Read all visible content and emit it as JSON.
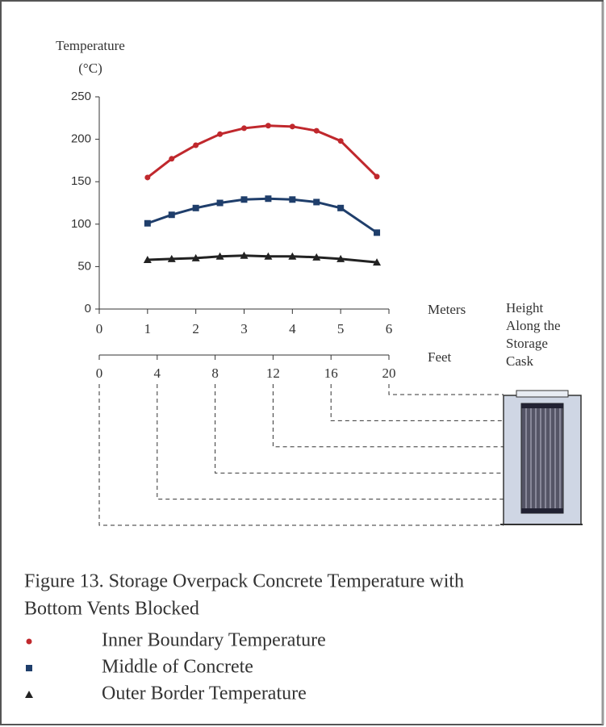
{
  "chart_data": {
    "type": "line",
    "y_label_lines": [
      "Temperature",
      "(°C)"
    ],
    "x_label": "Meters",
    "x2_label": "Feet",
    "cask_label": [
      "Height",
      "Along the",
      "Storage",
      "Cask"
    ],
    "x": [
      1,
      1.5,
      2,
      2.5,
      3,
      3.5,
      4,
      4.5,
      5,
      5.75
    ],
    "series": [
      {
        "name": "Inner Boundary Temperature",
        "color": "#c0282d",
        "marker": "circle",
        "values": [
          155,
          177,
          193,
          206,
          213,
          216,
          215,
          210,
          198,
          156
        ]
      },
      {
        "name": "Middle of Concrete",
        "color": "#1f3e6b",
        "marker": "square",
        "values": [
          101,
          111,
          119,
          125,
          129,
          130,
          129,
          126,
          119,
          90
        ]
      },
      {
        "name": "Outer Border Temperature",
        "color": "#222222",
        "marker": "triangle",
        "values": [
          58,
          59,
          60,
          62,
          63,
          62,
          62,
          61,
          59,
          55
        ]
      }
    ],
    "xlim": [
      0,
      6
    ],
    "xticks": [
      0,
      1,
      2,
      3,
      4,
      5,
      6
    ],
    "ylim": [
      0,
      250
    ],
    "yticks": [
      0,
      50,
      100,
      150,
      200,
      250
    ],
    "x2lim": [
      0,
      20
    ],
    "x2ticks": [
      0,
      4,
      8,
      12,
      16,
      20
    ],
    "caption_lines": [
      "Figure 13.  Storage Overpack Concrete Temperature with",
      "Bottom Vents Blocked"
    ]
  }
}
